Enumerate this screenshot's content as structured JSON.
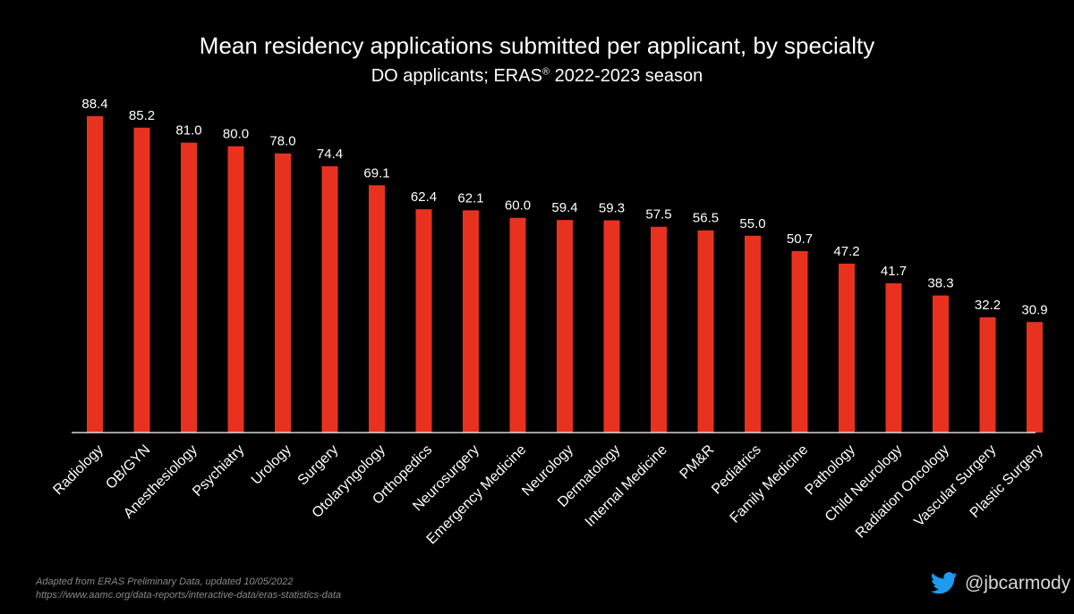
{
  "title_line": "Mean residency applications submitted per applicant, by specialty",
  "subtitle": {
    "prefix": "DO applicants; ERAS",
    "sup": "®",
    "suffix": " 2022-2023 season"
  },
  "footer": {
    "source": "Adapted from ERAS Preliminary Data, updated 10/05/2022",
    "url": "https://www.aamc.org/data-reports/interactive-data/eras-statistics-data",
    "handle": "@jbcarmody",
    "handle_icon": "twitter-bird-icon"
  },
  "colors": {
    "bar": "#e8321f",
    "background": "#000000",
    "text": "#ffffff",
    "axis": "#ffffff",
    "twitter": "#1d9bf0"
  },
  "chart_data": {
    "type": "bar",
    "title": "Mean residency applications submitted per applicant, by specialty",
    "subtitle": "DO applicants; ERAS® 2022-2023 season",
    "xlabel": "",
    "ylabel": "",
    "ylim": [
      0,
      90
    ],
    "grid": false,
    "categories": [
      "Radiology",
      "OB/GYN",
      "Anesthesiology",
      "Psychiatry",
      "Urology",
      "Surgery",
      "Otolaryngology",
      "Orthopedics",
      "Neurosurgery",
      "Emergency Medicine",
      "Neurology",
      "Dermatology",
      "Internal Medicine",
      "PM&R",
      "Pediatrics",
      "Family Medicine",
      "Pathology",
      "Child Neurology",
      "Radiation Oncology",
      "Vascular Surgery",
      "Plastic Surgery"
    ],
    "values": [
      88.4,
      85.2,
      81.0,
      80.0,
      78.0,
      74.4,
      69.1,
      62.4,
      62.1,
      60.0,
      59.4,
      59.3,
      57.5,
      56.5,
      55.0,
      50.7,
      47.2,
      41.7,
      38.3,
      32.2,
      30.9
    ],
    "data_labels": [
      "88.4",
      "85.2",
      "81.0",
      "80.0",
      "78.0",
      "74.4",
      "69.1",
      "62.4",
      "62.1",
      "60.0",
      "59.4",
      "59.3",
      "57.5",
      "56.5",
      "55.0",
      "50.7",
      "47.2",
      "41.7",
      "38.3",
      "32.2",
      "30.9"
    ]
  }
}
